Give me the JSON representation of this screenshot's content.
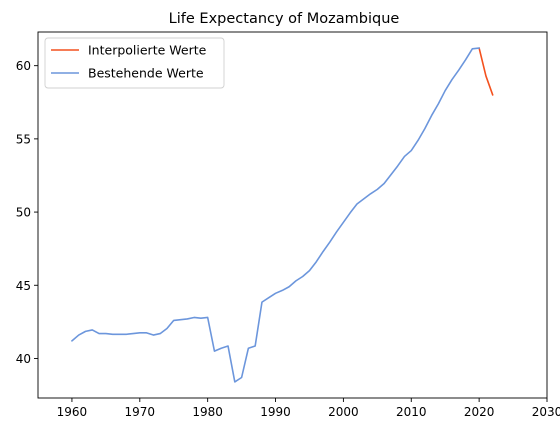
{
  "chart_data": {
    "type": "line",
    "title": "Life Expectancy of Mozambique",
    "xlabel": "",
    "ylabel": "",
    "xlim": [
      1955,
      2030
    ],
    "ylim": [
      37.3,
      62.3
    ],
    "xticks": [
      1960,
      1970,
      1980,
      1990,
      2000,
      2010,
      2020,
      2030
    ],
    "yticks": [
      40,
      45,
      50,
      55,
      60
    ],
    "grid": false,
    "legend_position": "top-left",
    "series": [
      {
        "name": "Interpolierte Werte",
        "color": "#f4511e",
        "x": [
          2020,
          2021,
          2022
        ],
        "values": [
          61.2,
          59.3,
          58.0
        ]
      },
      {
        "name": "Bestehende Werte",
        "color": "#6c96dc",
        "x": [
          1960,
          1961,
          1962,
          1963,
          1964,
          1965,
          1966,
          1967,
          1968,
          1969,
          1970,
          1971,
          1972,
          1973,
          1974,
          1975,
          1976,
          1977,
          1978,
          1979,
          1980,
          1981,
          1982,
          1983,
          1984,
          1985,
          1986,
          1987,
          1988,
          1989,
          1990,
          1991,
          1992,
          1993,
          1994,
          1995,
          1996,
          1997,
          1998,
          1999,
          2000,
          2001,
          2002,
          2003,
          2004,
          2005,
          2006,
          2007,
          2008,
          2009,
          2010,
          2011,
          2012,
          2013,
          2014,
          2015,
          2016,
          2017,
          2018,
          2019,
          2020
        ],
        "values": [
          41.2,
          41.6,
          41.85,
          41.95,
          41.7,
          41.7,
          41.65,
          41.65,
          41.65,
          41.7,
          41.75,
          41.75,
          41.6,
          41.7,
          42.05,
          42.6,
          42.65,
          42.7,
          42.8,
          42.75,
          42.8,
          40.5,
          40.7,
          40.85,
          38.4,
          38.7,
          40.7,
          40.85,
          43.85,
          44.15,
          44.45,
          44.65,
          44.9,
          45.3,
          45.6,
          46.0,
          46.6,
          47.3,
          47.95,
          48.65,
          49.3,
          49.95,
          50.55,
          50.9,
          51.25,
          51.55,
          51.95,
          52.55,
          53.15,
          53.8,
          54.2,
          54.9,
          55.7,
          56.6,
          57.4,
          58.3,
          59.05,
          59.7,
          60.4,
          61.15,
          61.2
        ]
      }
    ]
  }
}
